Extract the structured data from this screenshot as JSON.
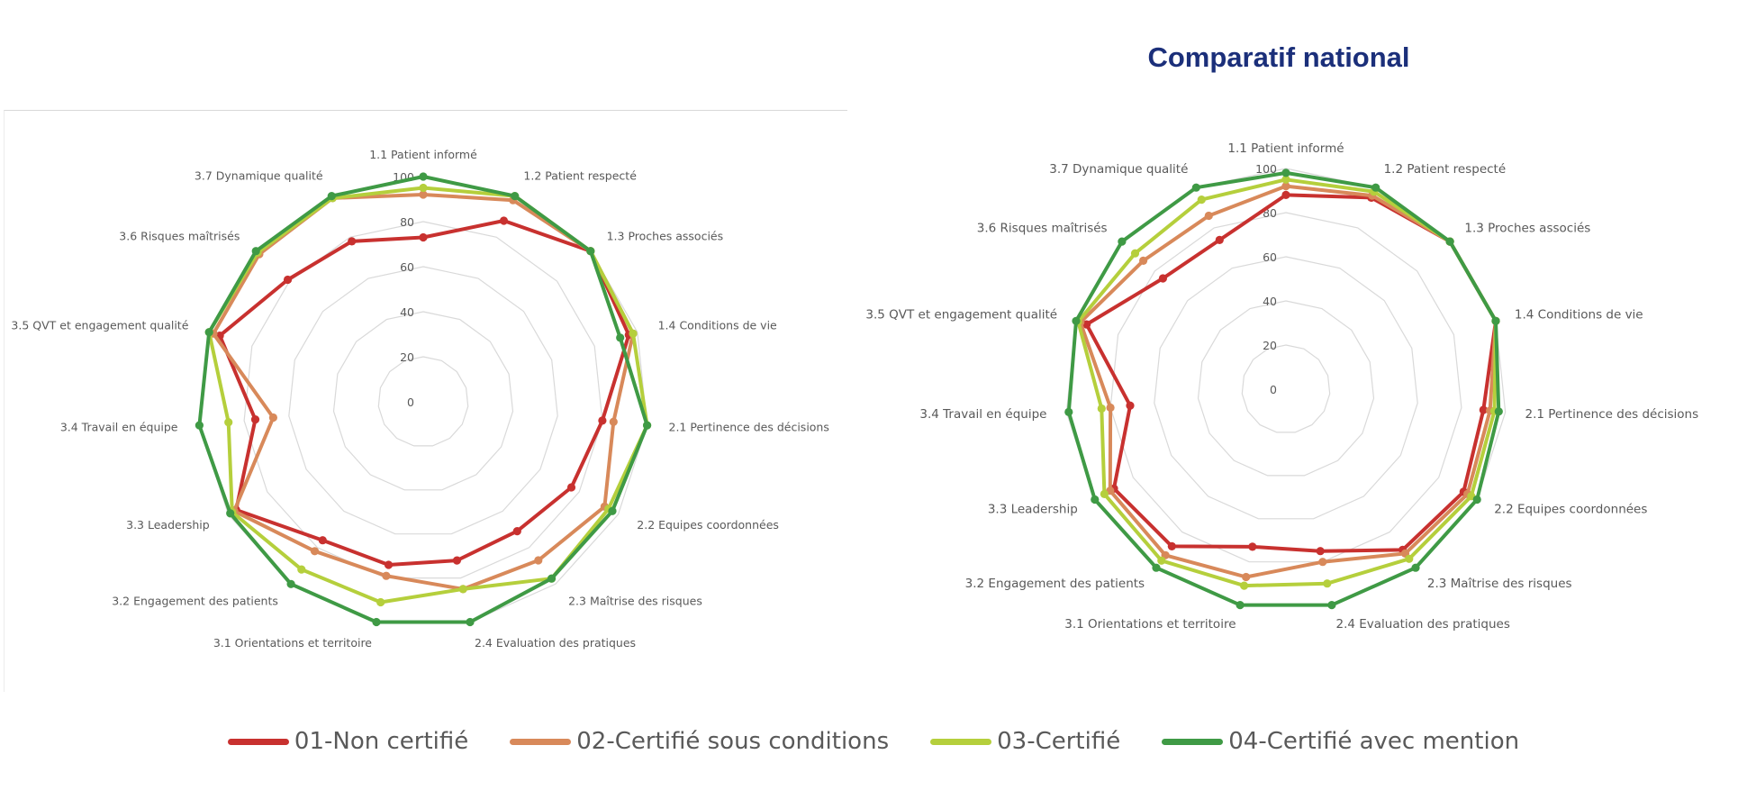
{
  "right_title": "Comparatif national",
  "colors": {
    "non_certifie": "#c8312f",
    "certifie_sous_conditions": "#d8895a",
    "certifie": "#b5cf3c",
    "certifie_avec_mention": "#3f9a45",
    "grid": "#d9d9d9",
    "text": "#595959"
  },
  "legend": [
    {
      "label": "01-Non certifié",
      "color": "#c8312f"
    },
    {
      "label": "02-Certifié sous conditions",
      "color": "#d8895a"
    },
    {
      "label": "03-Certifié",
      "color": "#b5cf3c"
    },
    {
      "label": "04-Certifié avec mention",
      "color": "#3f9a45"
    }
  ],
  "chart_data": [
    {
      "type": "radar",
      "rlim": [
        0,
        100
      ],
      "ticks": [
        "0",
        "20",
        "40",
        "60",
        "80",
        "100"
      ],
      "categories": [
        "1.1 Patient informé",
        "1.2 Patient respecté",
        "1.3 Proches associés",
        "1.4 Conditions de vie",
        "2.1 Pertinence des décisions",
        "2.2 Equipes coordonnées",
        "2.3 Maîtrise des risques",
        "2.4 Evaluation des pratiques",
        "3.1 Orientations et territoire",
        "3.2 Engagement des patients",
        "3.3 Leadership",
        "3.4 Travail en équipe",
        "3.5 QVT et engagement qualité",
        "3.6 Risques maîtrisés",
        "3.7 Dynamique qualité"
      ],
      "legend": "bottom",
      "series": [
        {
          "name": "01-Non certifié",
          "values": [
            73,
            88,
            100,
            96,
            80,
            76,
            71,
            72,
            74,
            76,
            96,
            75,
            95,
            81,
            78
          ]
        },
        {
          "name": "02-Certifié sous conditions",
          "values": [
            92,
            98,
            100,
            98,
            85,
            93,
            87,
            85,
            79,
            82,
            97,
            67,
            98,
            98,
            99
          ]
        },
        {
          "name": "03-Certifié",
          "values": [
            95,
            100,
            100,
            98,
            100,
            95,
            97,
            85,
            91,
            92,
            98,
            87,
            100,
            99,
            99
          ]
        },
        {
          "name": "04-Certifié avec mention",
          "values": [
            100,
            100,
            100,
            92,
            100,
            97,
            97,
            100,
            100,
            100,
            99,
            100,
            100,
            100,
            100
          ]
        }
      ]
    },
    {
      "type": "radar",
      "title": "Comparatif national",
      "rlim": [
        0,
        100
      ],
      "ticks": [
        "0",
        "20",
        "40",
        "60",
        "80",
        "100"
      ],
      "categories": [
        "1.1 Patient informé",
        "1.2 Patient respecté",
        "1.3 Proches associés",
        "1.4 Conditions de vie",
        "2.1 Pertinence des décisions",
        "2.2 Equipes coordonnées",
        "2.3 Maîtrise des risques",
        "2.4 Evaluation des pratiques",
        "3.1 Orientations et territoire",
        "3.2 Engagement des patients",
        "3.3 Leadership",
        "3.4 Travail en équipe",
        "3.5 QVT et engagement qualité",
        "3.6 Risques maîtrisés",
        "3.7 Dynamique qualité"
      ],
      "legend": "bottom",
      "series": [
        {
          "name": "01-Non certifié",
          "values": [
            88,
            95,
            100,
            100,
            90,
            93,
            90,
            75,
            73,
            88,
            90,
            71,
            95,
            75,
            74
          ]
        },
        {
          "name": "02-Certifié sous conditions",
          "values": [
            92,
            96,
            100,
            100,
            93,
            95,
            92,
            80,
            87,
            93,
            92,
            80,
            98,
            87,
            86
          ]
        },
        {
          "name": "03-Certifié",
          "values": [
            95,
            98,
            100,
            100,
            95,
            97,
            95,
            90,
            91,
            96,
            95,
            84,
            99,
            92,
            94
          ]
        },
        {
          "name": "04-Certifié avec mention",
          "values": [
            98,
            100,
            100,
            100,
            97,
            100,
            100,
            100,
            100,
            100,
            100,
            99,
            100,
            100,
            100
          ]
        }
      ]
    }
  ]
}
